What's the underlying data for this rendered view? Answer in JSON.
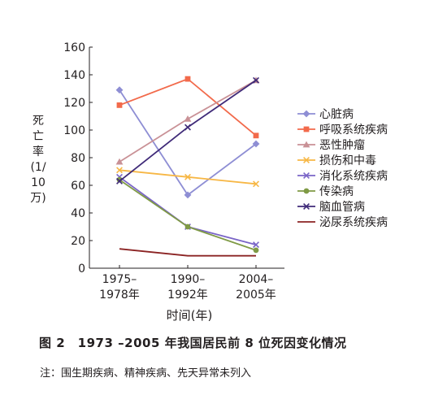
{
  "chart_data": {
    "type": "line",
    "title": "",
    "ylabel": "死亡率(1/10万)",
    "xlabel": "时间(年)",
    "categories": [
      "1975–1978年",
      "1990–1992年",
      "2004–2005年"
    ],
    "ylim": [
      0,
      160
    ],
    "yticks": [
      0,
      20,
      40,
      60,
      80,
      100,
      120,
      140,
      160
    ],
    "grid": false,
    "legend_position": "right",
    "series": [
      {
        "name": "心脏病",
        "values": [
          129,
          53,
          90
        ],
        "color": "#8e8ed4",
        "marker": "diamond"
      },
      {
        "name": "呼吸系统疾病",
        "values": [
          118,
          137,
          96
        ],
        "color": "#f26a4b",
        "marker": "square"
      },
      {
        "name": "恶性肿瘤",
        "values": [
          77,
          108,
          136
        ],
        "color": "#c99196",
        "marker": "triangle"
      },
      {
        "name": "损伤和中毒",
        "values": [
          71,
          66,
          61
        ],
        "color": "#f7b745",
        "marker": "x"
      },
      {
        "name": "消化系统疾病",
        "values": [
          66,
          30,
          17
        ],
        "color": "#7a65c7",
        "marker": "x"
      },
      {
        "name": "传染病",
        "values": [
          64,
          30,
          13
        ],
        "color": "#7f9a45",
        "marker": "circle"
      },
      {
        "name": "脑血管病",
        "values": [
          63,
          102,
          136
        ],
        "color": "#3f2a78",
        "marker": "x"
      },
      {
        "name": "泌尿系统疾病",
        "values": [
          14,
          9,
          9
        ],
        "color": "#8b2323",
        "marker": "none"
      }
    ]
  },
  "caption": "图 2　1973 –2005 年我国居民前 8 位死因变化情况",
  "note": "注：围生期疾病、精神疾病、先天异常未列入"
}
